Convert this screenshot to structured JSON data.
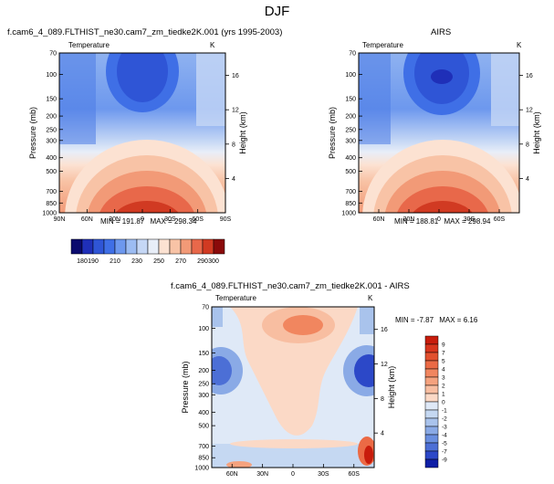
{
  "figure": {
    "suptitle": "DJF"
  },
  "chart_data": [
    {
      "type": "heatmap",
      "title": "f.cam6_4_089.FLTHIST_ne30.cam7_zm_tiedke2K.001 (yrs 1995-2003)",
      "left_string": "Temperature",
      "right_string": "K",
      "ylabel": "Pressure (mb)",
      "y2label": "Height (km)",
      "x_ticklabels": [
        "90N",
        "60N",
        "30N",
        "0",
        "30S",
        "60S",
        "90S"
      ],
      "x_tickvalues": [
        90,
        60,
        30,
        0,
        -30,
        -60,
        -90
      ],
      "xlim": [
        90,
        -90
      ],
      "y_ticklabels": [
        "70",
        "100",
        "150",
        "200",
        "250",
        "300",
        "400",
        "500",
        "700",
        "850",
        "1000"
      ],
      "y_tickvalues": [
        70,
        100,
        150,
        200,
        250,
        300,
        400,
        500,
        700,
        850,
        1000
      ],
      "ylim": [
        70,
        1000
      ],
      "y_scale": "log",
      "y2_ticklabels": [
        "4",
        "8",
        "12",
        "16"
      ],
      "y2_tickvalues": [
        4,
        8,
        12,
        16
      ],
      "min_label": "MIN = 191.87",
      "max_label": "MAX = 298.34",
      "min": 191.87,
      "max": 298.34
    },
    {
      "type": "heatmap",
      "title": "AIRS",
      "left_string": "Temperature",
      "right_string": "K",
      "ylabel": "Pressure (mb)",
      "y2label": "Height (km)",
      "x_ticklabels": [
        "60N",
        "30N",
        "0",
        "30S",
        "60S"
      ],
      "x_tickvalues": [
        60,
        30,
        0,
        -30,
        -60
      ],
      "xlim": [
        80,
        -80
      ],
      "y_ticklabels": [
        "70",
        "100",
        "150",
        "200",
        "250",
        "300",
        "400",
        "500",
        "700",
        "850",
        "1000"
      ],
      "y_tickvalues": [
        70,
        100,
        150,
        200,
        250,
        300,
        400,
        500,
        700,
        850,
        1000
      ],
      "ylim": [
        70,
        1000
      ],
      "y_scale": "log",
      "y2_ticklabels": [
        "4",
        "8",
        "12",
        "16"
      ],
      "y2_tickvalues": [
        4,
        8,
        12,
        16
      ],
      "min_label": "MIN = 188.81",
      "max_label": "MAX = 298.94",
      "min": 188.81,
      "max": 298.94
    },
    {
      "type": "heatmap",
      "title": "f.cam6_4_089.FLTHIST_ne30.cam7_zm_tiedke2K.001 - AIRS",
      "left_string": "Temperature",
      "right_string": "K",
      "ylabel": "Pressure (mb)",
      "y2label": "Height (km)",
      "x_ticklabels": [
        "60N",
        "30N",
        "0",
        "30S",
        "60S"
      ],
      "x_tickvalues": [
        60,
        30,
        0,
        -30,
        -60
      ],
      "xlim": [
        80,
        -80
      ],
      "y_ticklabels": [
        "70",
        "100",
        "150",
        "200",
        "250",
        "300",
        "400",
        "500",
        "700",
        "850",
        "1000"
      ],
      "y_tickvalues": [
        70,
        100,
        150,
        200,
        250,
        300,
        400,
        500,
        700,
        850,
        1000
      ],
      "ylim": [
        70,
        1000
      ],
      "y_scale": "log",
      "y2_ticklabels": [
        "4",
        "8",
        "12",
        "16"
      ],
      "y2_tickvalues": [
        4,
        8,
        12,
        16
      ],
      "min_label": "MIN = -7.87",
      "max_label": "MAX =  6.16",
      "min": -7.87,
      "max": 6.16
    }
  ],
  "colorbars": {
    "absolute": {
      "orientation": "horizontal",
      "levels": [
        180,
        190,
        200,
        210,
        220,
        230,
        240,
        250,
        260,
        270,
        280,
        290,
        300
      ],
      "labels": [
        "180",
        "190",
        "210",
        "230",
        "250",
        "270",
        "290",
        "300"
      ],
      "label_levels": [
        180,
        190,
        210,
        230,
        250,
        270,
        290,
        300
      ],
      "colors": [
        "#0a0a6e",
        "#1f2fb8",
        "#2f55d6",
        "#3f6fe6",
        "#6d98ee",
        "#9cbcf2",
        "#c5d7f5",
        "#e8eef8",
        "#fce2d2",
        "#f8c3a6",
        "#f29a77",
        "#e8684a",
        "#d13a22",
        "#8a0a0a"
      ]
    },
    "difference": {
      "orientation": "vertical",
      "levels": [
        -9,
        -7,
        -5,
        -4,
        -3,
        -2,
        -1,
        0,
        1,
        2,
        3,
        4,
        5,
        7,
        9
      ],
      "labels": [
        "9",
        "7",
        "5",
        "4",
        "3",
        "2",
        "1",
        "0",
        "-1",
        "-2",
        "-3",
        "-4",
        "-5",
        "-7",
        "-9"
      ],
      "colors": [
        "#c81c0c",
        "#d8351d",
        "#e2502e",
        "#eb6a45",
        "#f1865f",
        "#f5a27e",
        "#f8bea1",
        "#fbd9c6",
        "#dfe9f7",
        "#c5d8f2",
        "#a9c3ec",
        "#8aaae6",
        "#6a8fe0",
        "#4c6fd6",
        "#2c48c8",
        "#0f1fa6"
      ]
    }
  }
}
